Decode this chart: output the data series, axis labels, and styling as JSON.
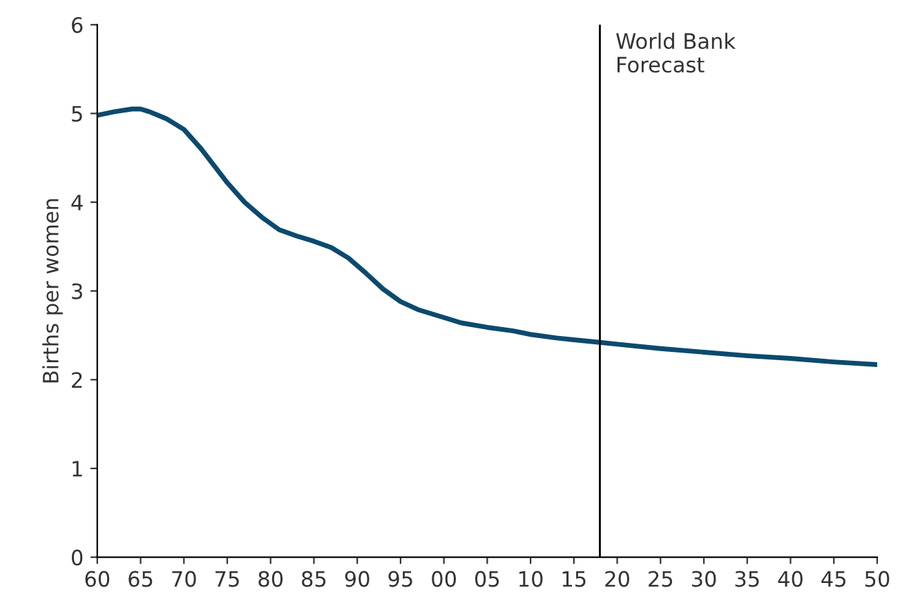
{
  "chart_data": {
    "type": "line",
    "ylabel": "Births per women",
    "x": [
      1960,
      1962,
      1964,
      1965,
      1966,
      1967,
      1968,
      1970,
      1972,
      1975,
      1977,
      1979,
      1981,
      1983,
      1985,
      1987,
      1989,
      1991,
      1993,
      1995,
      1997,
      2000,
      2002,
      2005,
      2008,
      2010,
      2013,
      2015,
      2018,
      2020,
      2025,
      2030,
      2035,
      2040,
      2045,
      2050
    ],
    "series": [
      {
        "color": "#0b4a6e",
        "values": [
          4.98,
          5.02,
          5.05,
          5.05,
          5.02,
          4.98,
          4.94,
          4.82,
          4.6,
          4.22,
          4.0,
          3.83,
          3.69,
          3.62,
          3.56,
          3.49,
          3.37,
          3.2,
          3.02,
          2.88,
          2.79,
          2.7,
          2.64,
          2.59,
          2.55,
          2.51,
          2.47,
          2.45,
          2.42,
          2.4,
          2.35,
          2.31,
          2.27,
          2.24,
          2.2,
          2.17
        ]
      }
    ],
    "xlim": [
      1960,
      2050
    ],
    "xticks": [
      {
        "value": 1960,
        "label": "60"
      },
      {
        "value": 1965,
        "label": "65"
      },
      {
        "value": 1970,
        "label": "70"
      },
      {
        "value": 1975,
        "label": "75"
      },
      {
        "value": 1980,
        "label": "80"
      },
      {
        "value": 1985,
        "label": "85"
      },
      {
        "value": 1990,
        "label": "90"
      },
      {
        "value": 1995,
        "label": "95"
      },
      {
        "value": 2000,
        "label": "00"
      },
      {
        "value": 2005,
        "label": "05"
      },
      {
        "value": 2010,
        "label": "10"
      },
      {
        "value": 2015,
        "label": "15"
      },
      {
        "value": 2020,
        "label": "20"
      },
      {
        "value": 2025,
        "label": "25"
      },
      {
        "value": 2030,
        "label": "30"
      },
      {
        "value": 2035,
        "label": "35"
      },
      {
        "value": 2040,
        "label": "40"
      },
      {
        "value": 2045,
        "label": "45"
      },
      {
        "value": 2050,
        "label": "50"
      }
    ],
    "ylim": [
      0,
      6
    ],
    "yticks": [
      0,
      1,
      2,
      3,
      4,
      5,
      6
    ],
    "ref_lines": [
      {
        "axis": "x",
        "value": 2018,
        "label": "World Bank\nForecast",
        "color": "#000000",
        "line_style": "solid"
      }
    ],
    "grid": false,
    "legend": false,
    "marker": "none",
    "line_style": "solid"
  }
}
